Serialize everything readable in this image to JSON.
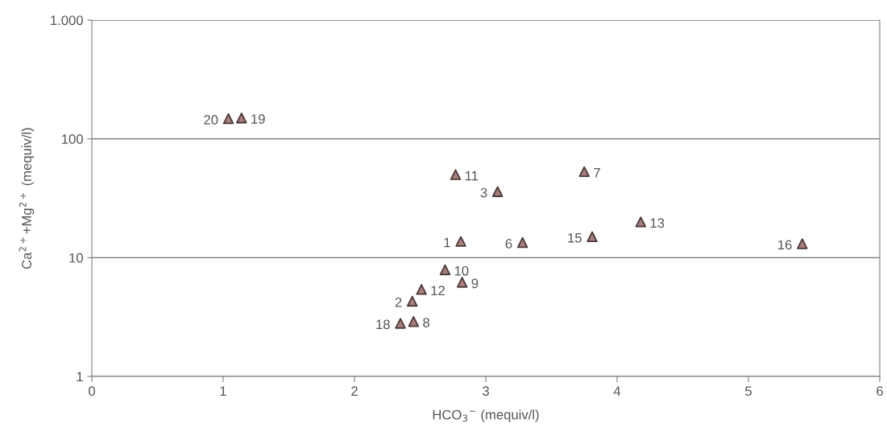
{
  "chart_data": {
    "type": "scatter",
    "xlabel": "HCO$_{3}$$^{−}$ (mequiv/l)",
    "ylabel": "Ca$^{2+}$+Mg$^{2+}$ (mequiv/l)",
    "log": "y",
    "grid": "y",
    "marker": "triangle",
    "xlim": [
      0,
      6
    ],
    "xticks": [
      0,
      1,
      2,
      3,
      4,
      5,
      6
    ],
    "ylim": [
      1,
      1000
    ],
    "yticks": [
      1,
      10,
      100,
      {
        "value": 1000,
        "label": "1.000"
      }
    ],
    "series": [
      {
        "color": "#a87f7c",
        "x": [
          1.04,
          1.14,
          2.77,
          3.09,
          3.75,
          4.18,
          2.81,
          3.28,
          3.81,
          5.41,
          2.69,
          2.82,
          2.51,
          2.44,
          2.35,
          2.45
        ],
        "values": [
          148,
          150,
          50,
          36,
          53,
          20,
          13.7,
          13.4,
          15,
          13.1,
          7.9,
          6.2,
          5.4,
          4.3,
          2.8,
          2.9
        ]
      }
    ],
    "annotations": [
      {
        "text": "20",
        "x": 1.04,
        "y": 148
      },
      {
        "text": "19",
        "x": 1.14,
        "y": 150
      },
      {
        "text": "11",
        "x": 2.77,
        "y": 50
      },
      {
        "text": "3",
        "x": 3.09,
        "y": 36
      },
      {
        "text": "7",
        "x": 3.75,
        "y": 53
      },
      {
        "text": "13",
        "x": 4.18,
        "y": 20
      },
      {
        "text": "1",
        "x": 2.81,
        "y": 13.7
      },
      {
        "text": "6",
        "x": 3.28,
        "y": 13.4
      },
      {
        "text": "15",
        "x": 3.81,
        "y": 15
      },
      {
        "text": "16",
        "x": 5.41,
        "y": 13.1
      },
      {
        "text": "10",
        "x": 2.69,
        "y": 7.9
      },
      {
        "text": "9",
        "x": 2.82,
        "y": 6.2
      },
      {
        "text": "12",
        "x": 2.51,
        "y": 5.4
      },
      {
        "text": "2",
        "x": 2.44,
        "y": 4.3
      },
      {
        "text": "18",
        "x": 2.35,
        "y": 2.8
      },
      {
        "text": "8",
        "x": 2.45,
        "y": 2.9
      }
    ]
  }
}
